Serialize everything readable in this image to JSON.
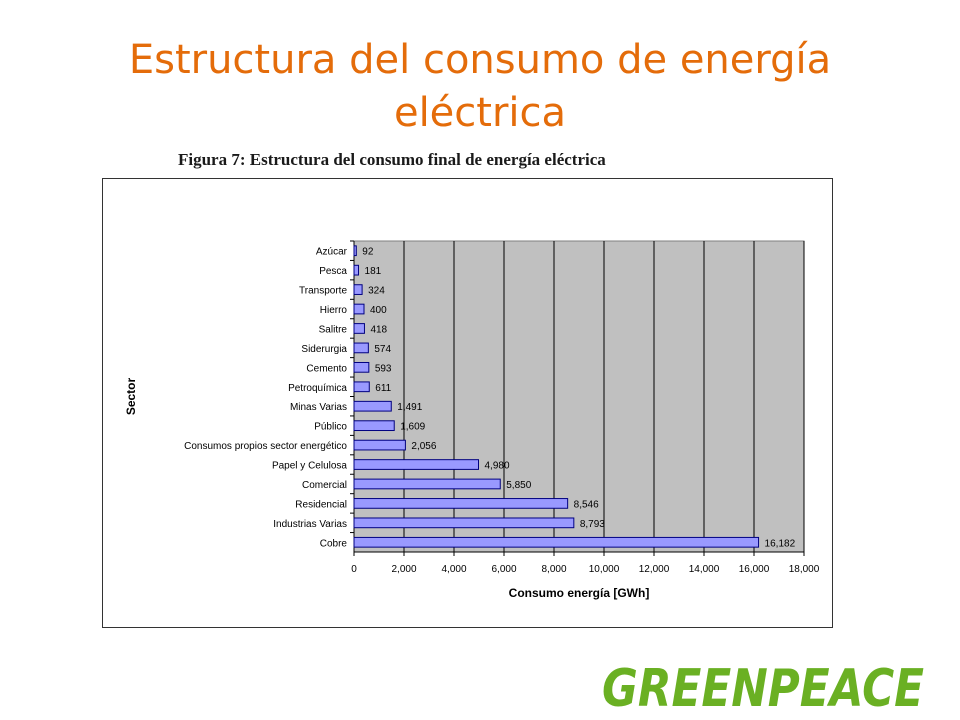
{
  "slide": {
    "title_line1": "Estructura del consumo de energía",
    "title_line2": "eléctrica",
    "figure_caption": "Figura 7: Estructura del consumo final de energía eléctrica",
    "logo_text": "GREENPEACE"
  },
  "colors": {
    "title": "#e46c0a",
    "bar_fill": "#9999ff",
    "bar_stroke": "#000080",
    "plot_bg": "#c0c0c0",
    "logo": "#6ab023"
  },
  "chart_data": {
    "type": "bar",
    "orientation": "horizontal",
    "title": "",
    "xlabel": "Consumo energía [GWh]",
    "ylabel": "Sector",
    "xlim": [
      0,
      18000
    ],
    "x_ticks": [
      "0",
      "2,000",
      "4,000",
      "6,000",
      "8,000",
      "10,000",
      "12,000",
      "14,000",
      "16,000",
      "18,000"
    ],
    "grid": "vertical",
    "categories": [
      "Azúcar",
      "Pesca",
      "Transporte",
      "Hierro",
      "Salitre",
      "Siderurgia",
      "Cemento",
      "Petroquímica",
      "Minas Varias",
      "Público",
      "Consumos propios sector energético",
      "Papel y Celulosa",
      "Comercial",
      "Residencial",
      "Industrias Varias",
      "Cobre"
    ],
    "values": [
      92,
      181,
      324,
      400,
      418,
      574,
      593,
      611,
      1491,
      1609,
      2056,
      4980,
      5850,
      8546,
      8793,
      16182
    ],
    "value_labels": [
      "92",
      "181",
      "324",
      "400",
      "418",
      "574",
      "593",
      "611",
      "1,491",
      "1,609",
      "2,056",
      "4,980",
      "5,850",
      "8,546",
      "8,793",
      "16,182"
    ]
  }
}
